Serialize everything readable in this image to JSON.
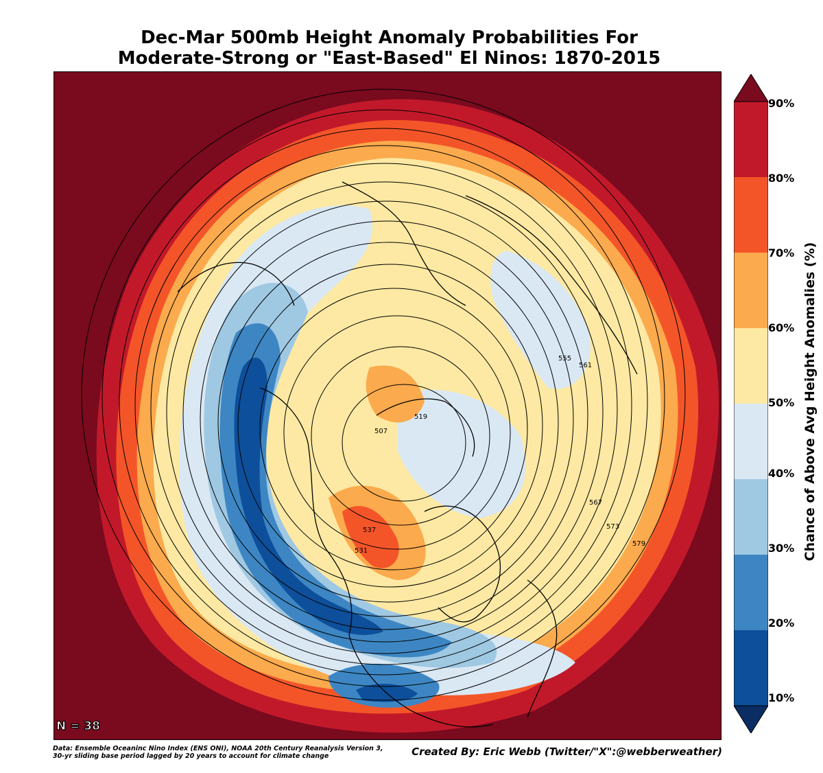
{
  "title": {
    "line1": "Dec-Mar 500mb Height Anomaly Probabilities For",
    "line2": "Moderate-Strong or \"East-Based\" El Ninos: 1870-2015"
  },
  "map": {
    "projection": "north-polar-stereographic",
    "sample_count_label": "N = 38",
    "contour_labels": [
      "507",
      "519",
      "531",
      "537",
      "555",
      "561",
      "567",
      "573",
      "579"
    ]
  },
  "colorbar": {
    "label": "Chance of Above Avg Height Anomalies (%)",
    "ticks": [
      "10%",
      "20%",
      "30%",
      "40%",
      "50%",
      "60%",
      "70%",
      "80%",
      "90%"
    ],
    "colors": {
      "under": "#0b2d63",
      "c10_20": "#0d4f9a",
      "c20_30": "#3d86c3",
      "c30_40": "#9fc8e2",
      "c40_50": "#dae8f4",
      "c50_60": "#fde9a3",
      "c60_70": "#fbaa4d",
      "c70_80": "#f45528",
      "c80_90": "#c2192a",
      "over": "#7a0a1e"
    }
  },
  "footer": {
    "data_line1": "Data: Ensemble Oceaninc Nino Index (ENS ONI), NOAA 20th Century Reanalysis Version 3,",
    "data_line2": " 30-yr sliding base period lagged by 20 years to account for climate change",
    "created_by": "Created By: Eric Webb (Twitter/\"X\":@webberweather)"
  }
}
